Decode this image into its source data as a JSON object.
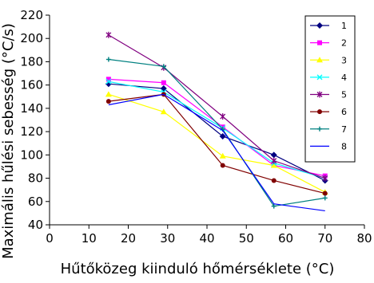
{
  "chart_data": {
    "type": "line",
    "title": "",
    "xlabel": "Hűtőközeg kiinduló hőmérséklete (°C)",
    "ylabel": "Maximális hűlési sebesség (°C/s)",
    "xlim": [
      0,
      80
    ],
    "ylim": [
      40,
      220
    ],
    "x_ticks": [
      0,
      10,
      20,
      30,
      40,
      50,
      60,
      70,
      80
    ],
    "y_ticks": [
      40,
      60,
      80,
      100,
      120,
      140,
      160,
      180,
      200,
      220
    ],
    "grid": false,
    "legend_position": "right",
    "x": [
      15,
      29,
      44,
      57,
      70
    ],
    "series": [
      {
        "name": "1",
        "color": "#000080",
        "marker": "diamond",
        "values": [
          161,
          157,
          116,
          100,
          78
        ]
      },
      {
        "name": "2",
        "color": "#ff00ff",
        "marker": "square",
        "values": [
          165,
          162,
          124,
          91,
          82
        ]
      },
      {
        "name": "3",
        "color": "#ffff00",
        "marker": "triangle",
        "values": [
          152,
          137,
          99,
          91,
          68
        ]
      },
      {
        "name": "4",
        "color": "#00ffff",
        "marker": "x",
        "values": [
          163,
          154,
          123,
          93,
          80
        ]
      },
      {
        "name": "5",
        "color": "#800080",
        "marker": "asterisk",
        "values": [
          203,
          175,
          133,
          95,
          80
        ]
      },
      {
        "name": "6",
        "color": "#800000",
        "marker": "circle",
        "values": [
          146,
          152,
          91,
          78,
          67
        ]
      },
      {
        "name": "7",
        "color": "#008080",
        "marker": "plus",
        "values": [
          182,
          176,
          122,
          56,
          63
        ]
      },
      {
        "name": "8",
        "color": "#0000ff",
        "marker": "none",
        "values": [
          143,
          152,
          121,
          58,
          52
        ]
      }
    ]
  }
}
